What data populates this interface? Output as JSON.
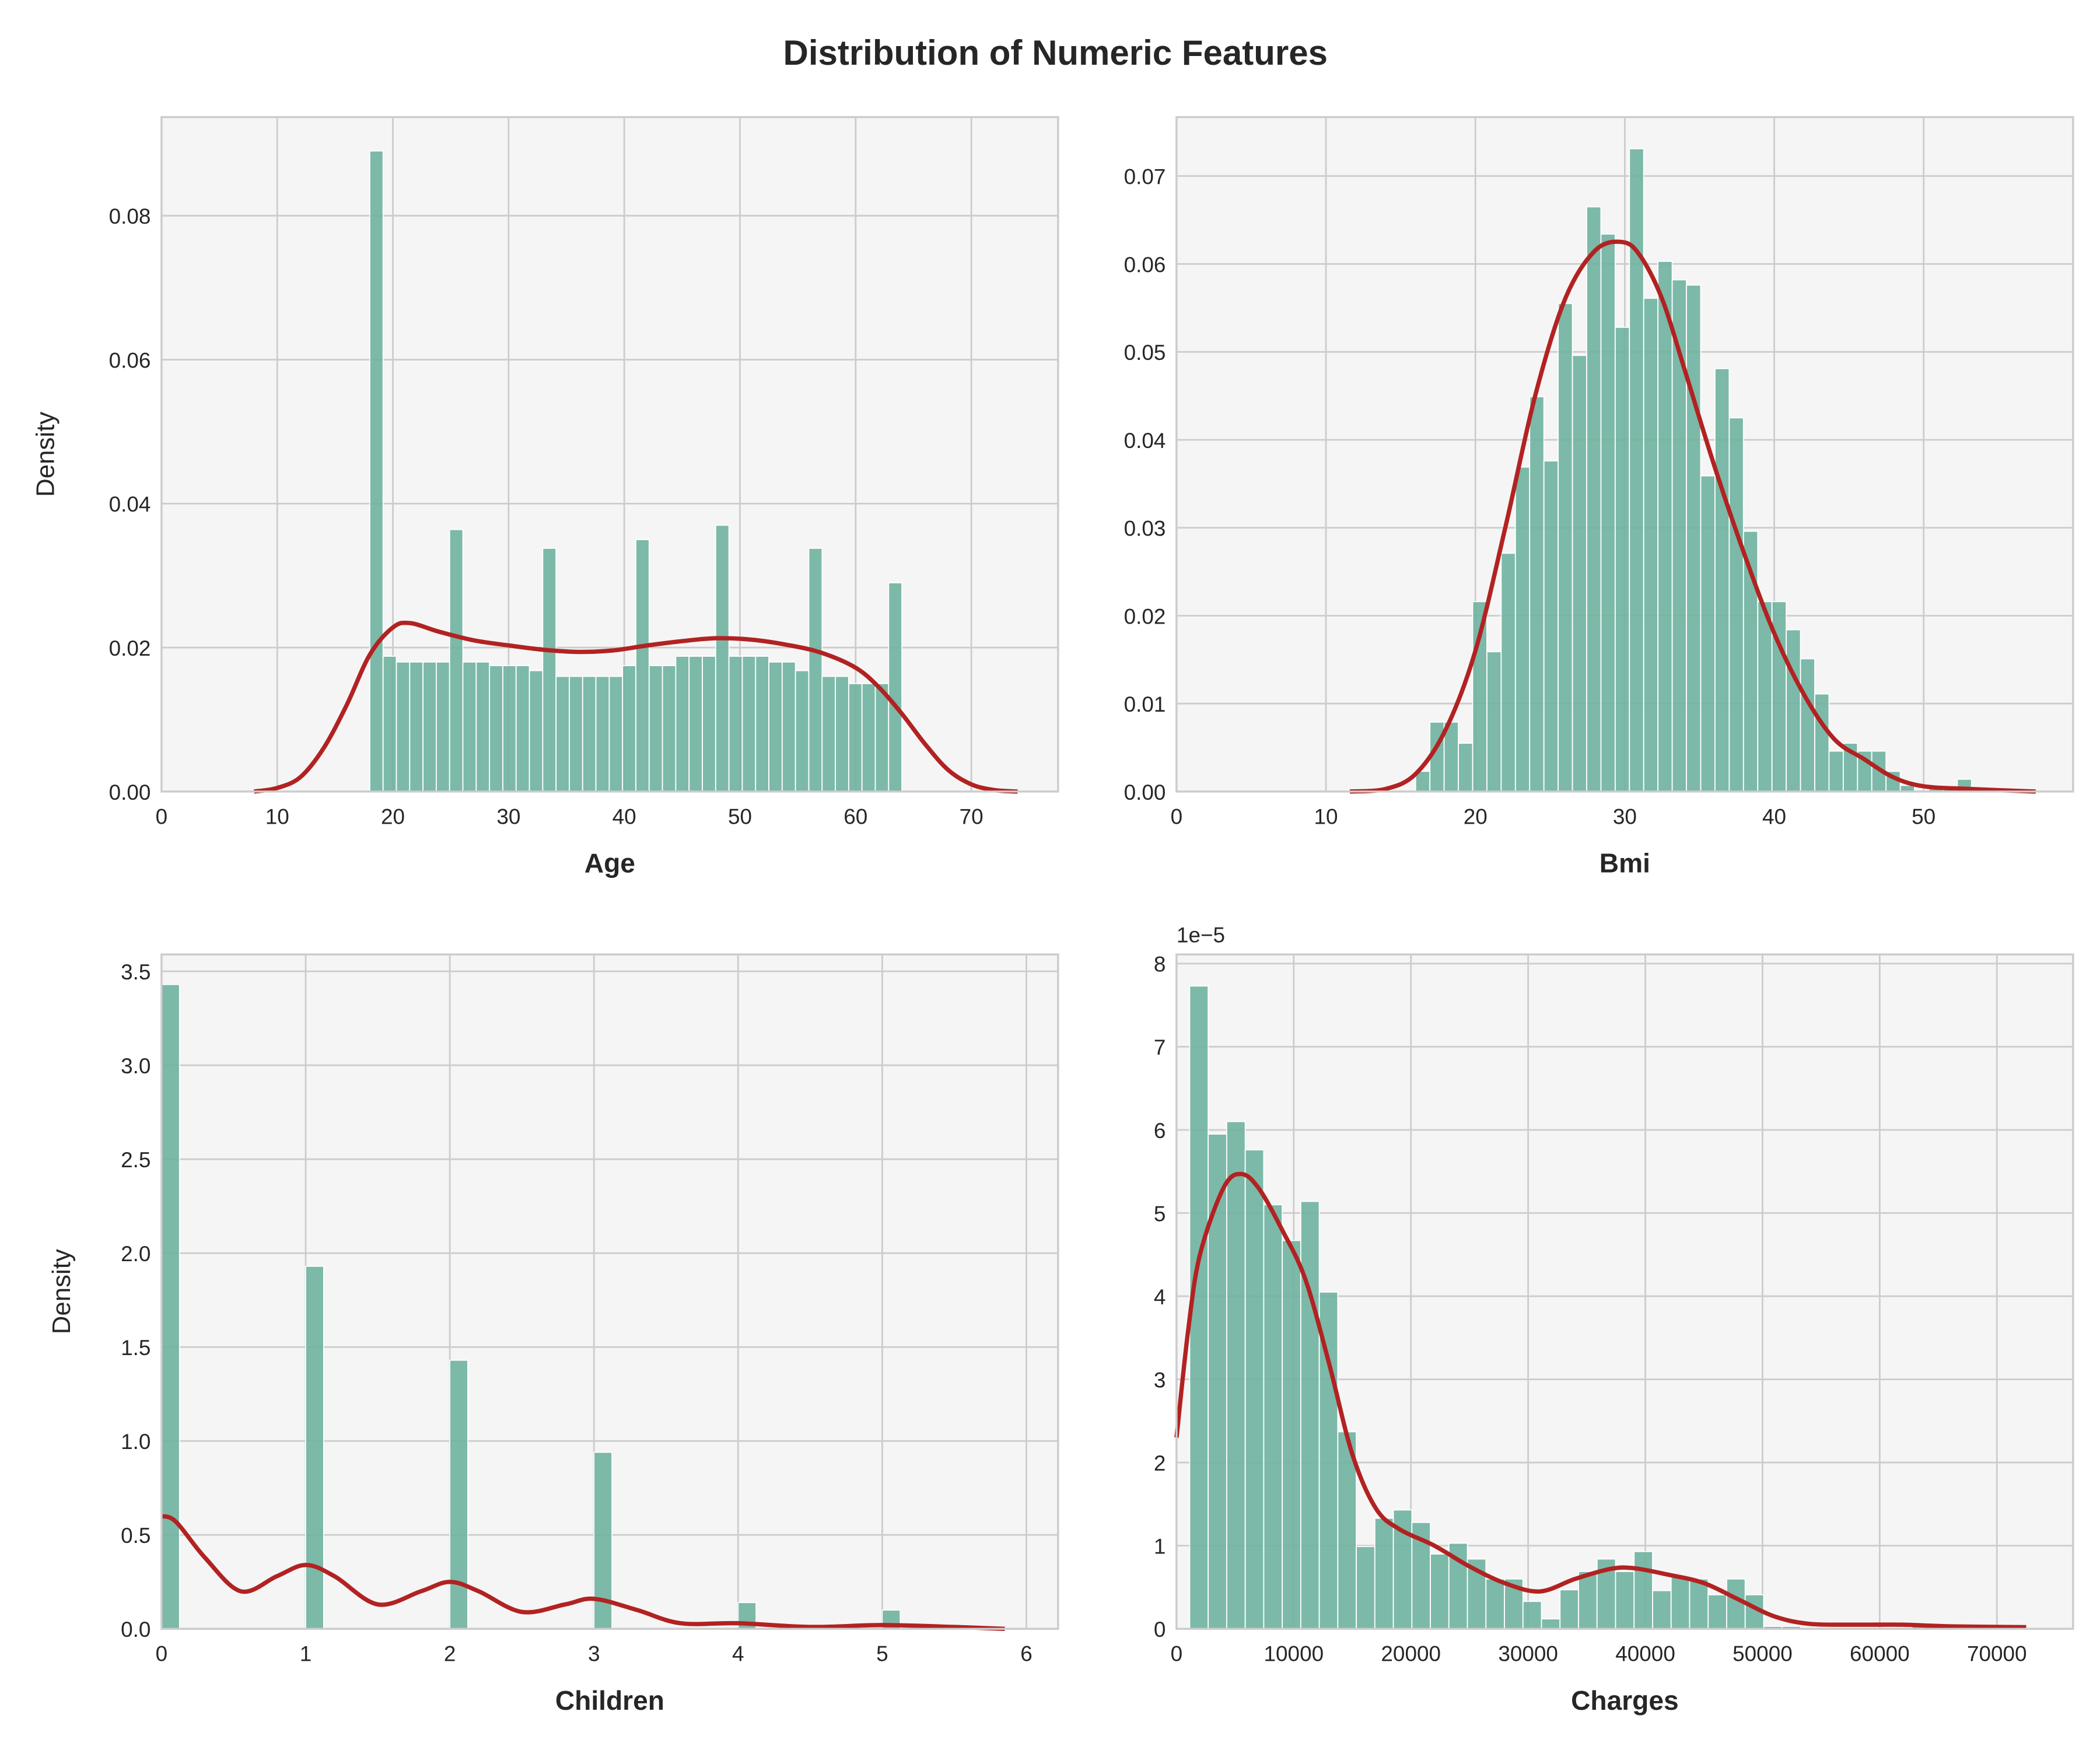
{
  "title": "Distribution of Numeric Features",
  "colors": {
    "bar": "#6fb3a0",
    "kde": "#b22222",
    "panel": "#f5f5f5",
    "grid": "#cccccc"
  },
  "chart_data": [
    {
      "type": "bar",
      "xlabel": "Age",
      "ylabel": "Density",
      "xlim": [
        0,
        77.5
      ],
      "ylim": [
        0,
        0.0937
      ],
      "xticks": [
        0,
        10,
        20,
        30,
        40,
        50,
        60,
        70
      ],
      "yticks": [
        0.0,
        0.02,
        0.04,
        0.06,
        0.08
      ],
      "ytick_labels": [
        "0.00",
        "0.02",
        "0.04",
        "0.06",
        "0.08"
      ],
      "bin_start": 18,
      "bin_width": 1.15,
      "values": [
        0.089,
        0.0188,
        0.018,
        0.018,
        0.018,
        0.018,
        0.0364,
        0.018,
        0.018,
        0.0175,
        0.0175,
        0.0175,
        0.0168,
        0.0338,
        0.016,
        0.016,
        0.016,
        0.016,
        0.016,
        0.0175,
        0.035,
        0.0175,
        0.0175,
        0.0188,
        0.0188,
        0.0188,
        0.037,
        0.0188,
        0.0188,
        0.0188,
        0.018,
        0.018,
        0.0168,
        0.0338,
        0.016,
        0.016,
        0.015,
        0.015,
        0.015,
        0.029
      ],
      "kde": [
        [
          8,
          0
        ],
        [
          10,
          0.0005
        ],
        [
          12,
          0.002
        ],
        [
          14,
          0.006
        ],
        [
          16,
          0.012
        ],
        [
          18,
          0.019
        ],
        [
          20,
          0.0228
        ],
        [
          21.5,
          0.0234
        ],
        [
          24,
          0.0222
        ],
        [
          27,
          0.021
        ],
        [
          30,
          0.0203
        ],
        [
          33,
          0.0197
        ],
        [
          36,
          0.0194
        ],
        [
          39,
          0.0196
        ],
        [
          42,
          0.0203
        ],
        [
          45,
          0.0209
        ],
        [
          48,
          0.0213
        ],
        [
          51,
          0.0211
        ],
        [
          54,
          0.0204
        ],
        [
          57,
          0.0193
        ],
        [
          60,
          0.0172
        ],
        [
          62,
          0.0145
        ],
        [
          64,
          0.0108
        ],
        [
          66,
          0.0066
        ],
        [
          68,
          0.003
        ],
        [
          70,
          0.001
        ],
        [
          72,
          0.0002
        ],
        [
          74,
          0
        ]
      ]
    },
    {
      "type": "bar",
      "xlabel": "Bmi",
      "ylabel": "",
      "xlim": [
        0,
        60
      ],
      "ylim": [
        0,
        0.0767
      ],
      "xticks": [
        0,
        10,
        20,
        30,
        40,
        50
      ],
      "yticks": [
        0.0,
        0.01,
        0.02,
        0.03,
        0.04,
        0.05,
        0.06,
        0.07
      ],
      "ytick_labels": [
        "0.00",
        "0.01",
        "0.02",
        "0.03",
        "0.04",
        "0.05",
        "0.06",
        "0.07"
      ],
      "bin_start": 16.0,
      "bin_width": 0.954,
      "values": [
        0.0023,
        0.0079,
        0.0079,
        0.0055,
        0.0216,
        0.0159,
        0.0271,
        0.0369,
        0.0449,
        0.0376,
        0.0555,
        0.0496,
        0.0665,
        0.0634,
        0.0528,
        0.0731,
        0.0561,
        0.0603,
        0.0582,
        0.0576,
        0.0359,
        0.0481,
        0.0425,
        0.0296,
        0.0216,
        0.0216,
        0.0184,
        0.0151,
        0.0111,
        0.0046,
        0.0055,
        0.0046,
        0.0046,
        0.0023,
        0.0007,
        0,
        0.0003,
        0.0003,
        0.0014
      ],
      "kde": [
        [
          11.6,
          0
        ],
        [
          14,
          0.0003
        ],
        [
          16,
          0.002
        ],
        [
          18,
          0.007
        ],
        [
          20,
          0.016
        ],
        [
          22,
          0.03
        ],
        [
          24,
          0.045
        ],
        [
          26,
          0.056
        ],
        [
          28,
          0.0615
        ],
        [
          29.8,
          0.0625
        ],
        [
          31,
          0.061
        ],
        [
          32.5,
          0.056
        ],
        [
          34,
          0.048
        ],
        [
          36,
          0.037
        ],
        [
          38,
          0.027
        ],
        [
          40,
          0.018
        ],
        [
          42,
          0.011
        ],
        [
          44,
          0.006
        ],
        [
          46,
          0.0037
        ],
        [
          48,
          0.0016
        ],
        [
          50,
          0.0006
        ],
        [
          53,
          0.0003
        ],
        [
          57.5,
          0
        ]
      ]
    },
    {
      "type": "bar",
      "xlabel": "Children",
      "ylabel": "Density",
      "xlim": [
        0,
        6.22
      ],
      "ylim": [
        0,
        3.59
      ],
      "xticks": [
        0,
        1,
        2,
        3,
        4,
        5,
        6
      ],
      "yticks": [
        0.0,
        0.5,
        1.0,
        1.5,
        2.0,
        2.5,
        3.0,
        3.5
      ],
      "ytick_labels": [
        "0.0",
        "0.5",
        "1.0",
        "1.5",
        "2.0",
        "2.5",
        "3.0",
        "3.5"
      ],
      "bars": [
        [
          0,
          3.43
        ],
        [
          1,
          1.93
        ],
        [
          2,
          1.43
        ],
        [
          3,
          0.94
        ],
        [
          4,
          0.14
        ],
        [
          5,
          0.1
        ]
      ],
      "bin_width": 0.125,
      "kde": [
        [
          0,
          0.6
        ],
        [
          0.1,
          0.57
        ],
        [
          0.3,
          0.38
        ],
        [
          0.55,
          0.2
        ],
        [
          0.8,
          0.28
        ],
        [
          1.0,
          0.34
        ],
        [
          1.2,
          0.28
        ],
        [
          1.5,
          0.13
        ],
        [
          1.8,
          0.2
        ],
        [
          2.0,
          0.25
        ],
        [
          2.2,
          0.2
        ],
        [
          2.5,
          0.09
        ],
        [
          2.8,
          0.13
        ],
        [
          3.0,
          0.16
        ],
        [
          3.3,
          0.1
        ],
        [
          3.6,
          0.03
        ],
        [
          4.0,
          0.03
        ],
        [
          4.5,
          0.01
        ],
        [
          5.0,
          0.02
        ],
        [
          5.5,
          0.01
        ],
        [
          5.85,
          0
        ]
      ]
    },
    {
      "type": "bar",
      "xlabel": "Charges",
      "ylabel": "",
      "offset_label": "1e−5",
      "xlim": [
        0,
        76500
      ],
      "ylim": [
        0,
        8.11
      ],
      "xticks": [
        0,
        10000,
        20000,
        30000,
        40000,
        50000,
        60000,
        70000
      ],
      "yticks": [
        0,
        1,
        2,
        3,
        4,
        5,
        6,
        7,
        8
      ],
      "ytick_labels": [
        "0",
        "1",
        "2",
        "3",
        "4",
        "5",
        "6",
        "7",
        "8"
      ],
      "bin_start": 1120,
      "bin_width": 1580,
      "values": [
        7.73,
        5.95,
        6.1,
        5.76,
        5.1,
        4.67,
        5.14,
        4.05,
        2.37,
        0.99,
        1.33,
        1.43,
        1.28,
        0.9,
        1.03,
        0.84,
        0.6,
        0.6,
        0.33,
        0.12,
        0.47,
        0.69,
        0.84,
        0.69,
        0.93,
        0.46,
        0.62,
        0.6,
        0.41,
        0.6,
        0.41,
        0.03,
        0.03,
        0,
        0,
        0,
        0,
        0,
        0,
        0.07
      ],
      "kde": [
        [
          0,
          2.3
        ],
        [
          1000,
          3.6
        ],
        [
          2000,
          4.5
        ],
        [
          4000,
          5.3
        ],
        [
          5500,
          5.47
        ],
        [
          7000,
          5.3
        ],
        [
          9000,
          4.8
        ],
        [
          11000,
          4.2
        ],
        [
          13000,
          3.2
        ],
        [
          15000,
          2.1
        ],
        [
          17000,
          1.45
        ],
        [
          19000,
          1.2
        ],
        [
          22000,
          1.0
        ],
        [
          25000,
          0.75
        ],
        [
          28000,
          0.55
        ],
        [
          31000,
          0.45
        ],
        [
          34000,
          0.6
        ],
        [
          37000,
          0.72
        ],
        [
          39000,
          0.73
        ],
        [
          42000,
          0.65
        ],
        [
          45000,
          0.55
        ],
        [
          48000,
          0.35
        ],
        [
          51000,
          0.15
        ],
        [
          54000,
          0.06
        ],
        [
          58000,
          0.05
        ],
        [
          62000,
          0.05
        ],
        [
          66000,
          0.03
        ],
        [
          72500,
          0.02
        ]
      ]
    }
  ]
}
